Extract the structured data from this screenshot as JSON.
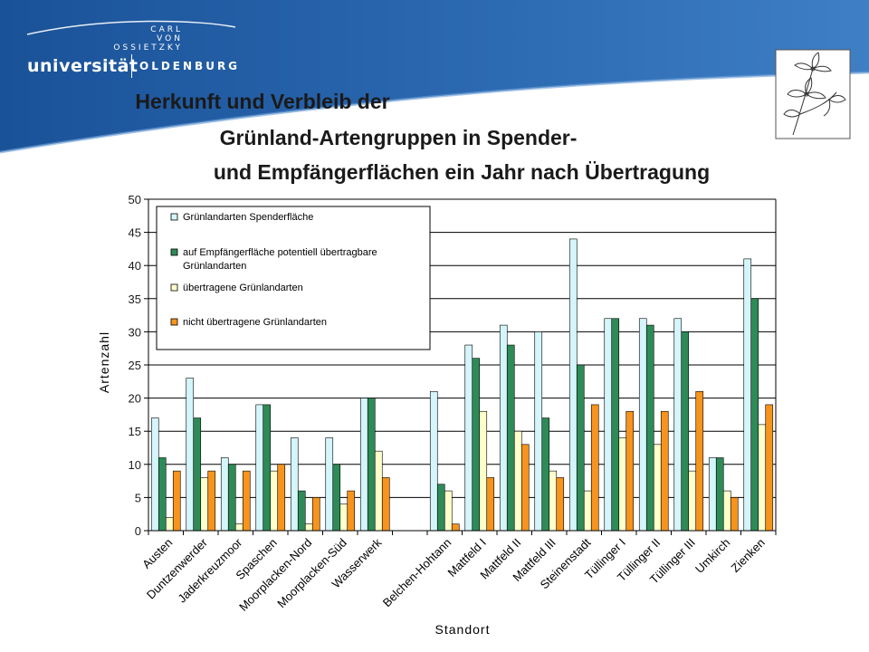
{
  "header": {
    "logo": {
      "carl": "CARL",
      "von": "VON",
      "ossietzky": "OSSIETZKY",
      "universitaet": "universität",
      "oldenburg": "OLDENBURG"
    },
    "title_lines": [
      "Herkunft und Verbleib der",
      "Grünland-Artengruppen in Spender-",
      "und Empfängerflächen ein Jahr nach Übertragung"
    ]
  },
  "colors": {
    "band": "#1f5aa3",
    "band_light": "#4f86c6",
    "series": [
      "#d4f5fa",
      "#2e8b57",
      "#ffffcc",
      "#f7941d"
    ],
    "grid": "#000000"
  },
  "chart_data": {
    "type": "bar",
    "title": "",
    "xlabel": "Standort",
    "ylabel": "Artenzahl",
    "ylim": [
      0,
      50
    ],
    "yticks": [
      0,
      5,
      10,
      15,
      20,
      25,
      30,
      35,
      40,
      45,
      50
    ],
    "grid": true,
    "legend_position": "top-left",
    "categories": [
      "Austen",
      "Duntzenwerder",
      "Jaderkreuzmoor",
      "Spaschen",
      "Moorplacken-Nord",
      "Moorplacken-Süd",
      "Wasserwerk",
      "",
      "Belchen-Hohtann",
      "Mattfeld I",
      "Mattfeld II",
      "Mattfeld III",
      "Steinenstadt",
      "Tüllinger I",
      "Tüllinger II",
      "Tüllinger III",
      "Umkirch",
      "Zienken"
    ],
    "series": [
      {
        "name": "Grünlandarten Spenderfläche",
        "values": [
          17,
          23,
          11,
          19,
          14,
          14,
          20,
          null,
          21,
          28,
          31,
          30,
          44,
          32,
          32,
          32,
          11,
          41
        ]
      },
      {
        "name": "auf Empfängerfläche potentiell übertragbare Grünlandarten",
        "values": [
          11,
          17,
          10,
          19,
          6,
          10,
          20,
          null,
          7,
          26,
          28,
          17,
          25,
          32,
          31,
          30,
          11,
          35
        ]
      },
      {
        "name": "übertragene Grünlandarten",
        "values": [
          2,
          8,
          1,
          9,
          1,
          4,
          12,
          null,
          6,
          18,
          15,
          9,
          6,
          14,
          13,
          9,
          6,
          16
        ]
      },
      {
        "name": "nicht übertragene Grünlandarten",
        "values": [
          9,
          9,
          9,
          10,
          5,
          6,
          8,
          null,
          1,
          8,
          13,
          8,
          19,
          18,
          18,
          21,
          5,
          19
        ]
      }
    ],
    "legend_entries": [
      "Grünlandarten Spenderfläche",
      "auf Empfängerfläche potentiell übertragbare",
      "Grünlandarten",
      "übertragene Grünlandarten",
      "nicht übertragene Grünlandarten"
    ]
  }
}
